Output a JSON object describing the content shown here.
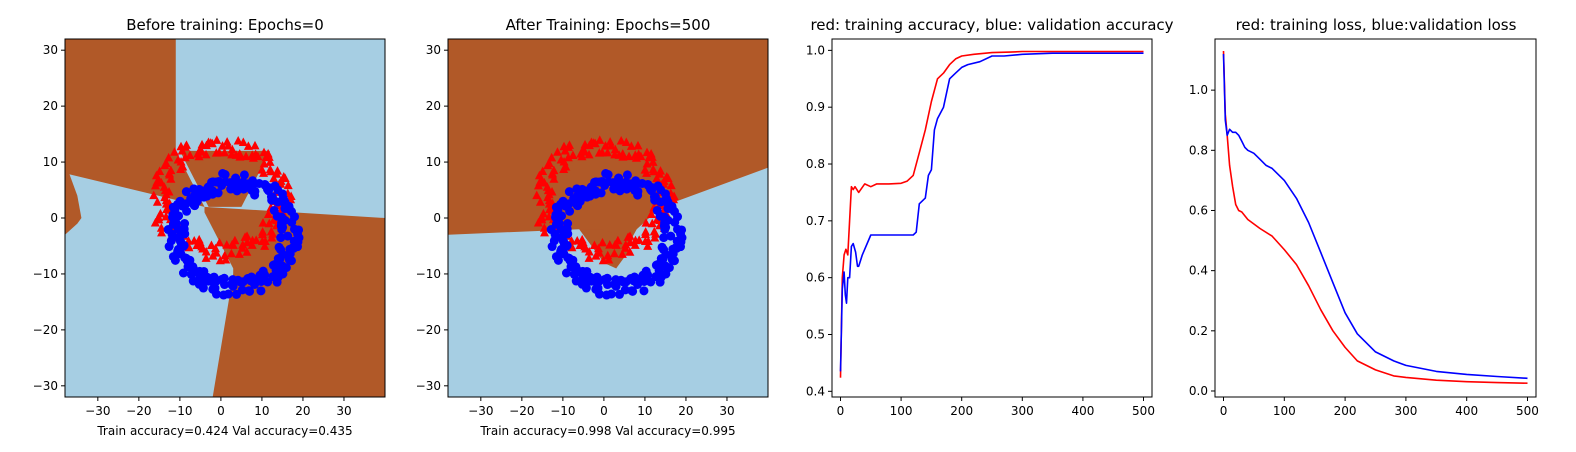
{
  "chart_data": [
    {
      "type": "scatter",
      "title": "Before training: Epochs=0",
      "xlabel": "Train accuracy=0.424 Val accuracy=0.435",
      "ylabel": "",
      "xlim": [
        -38,
        40
      ],
      "ylim": [
        -32,
        32
      ],
      "xticks": [
        -30,
        -20,
        -10,
        0,
        10,
        20,
        30
      ],
      "yticks": [
        -30,
        -20,
        -10,
        0,
        10,
        20,
        30
      ],
      "background_colors": {
        "region_a": "#a6cee3",
        "region_b": "#b15928"
      },
      "decision_regions_b": [
        [
          [
            -38,
            32
          ],
          [
            -11,
            32
          ],
          [
            -11,
            12
          ],
          [
            -4,
            2
          ],
          [
            -38,
            8
          ]
        ],
        [
          [
            -10,
            12
          ],
          [
            -3,
            2
          ],
          [
            5,
            2
          ],
          [
            12,
            12
          ]
        ],
        [
          [
            -38,
            8
          ],
          [
            -37,
            8
          ],
          [
            -35,
            4
          ],
          [
            -34,
            0
          ],
          [
            -35,
            -1
          ],
          [
            -38,
            -3
          ]
        ],
        [
          [
            -4,
            2
          ],
          [
            40,
            0
          ],
          [
            40,
            -32
          ],
          [
            -2,
            -32
          ],
          [
            3,
            -10
          ],
          [
            3,
            -9
          ],
          [
            -4,
            1
          ]
        ]
      ],
      "series": [
        {
          "marker": "triangle",
          "color": "#ff0000",
          "shape": "ring",
          "cx": 0,
          "cy": 3.5,
          "rx": 15,
          "ry": 9.5,
          "count": 170
        },
        {
          "marker": "circle",
          "color": "#0000ff",
          "shape": "ring",
          "cx": 3,
          "cy": -3,
          "rx": 14,
          "ry": 9.5,
          "count": 190
        }
      ]
    },
    {
      "type": "scatter",
      "title": "After Training: Epochs=500",
      "xlabel": "Train accuracy=0.998 Val accuracy=0.995",
      "ylabel": "",
      "xlim": [
        -38,
        40
      ],
      "ylim": [
        -32,
        32
      ],
      "xticks": [
        -30,
        -20,
        -10,
        0,
        10,
        20,
        30
      ],
      "yticks": [
        -30,
        -20,
        -10,
        0,
        10,
        20,
        30
      ],
      "background_colors": {
        "region_a": "#a6cee3",
        "region_b": "#b15928"
      },
      "decision_regions_b": [
        [
          [
            -38,
            32
          ],
          [
            40,
            32
          ],
          [
            40,
            9
          ],
          [
            14,
            2
          ],
          [
            8,
            -2
          ],
          [
            5,
            -6
          ],
          [
            3,
            -9
          ],
          [
            0,
            -8
          ],
          [
            -4,
            -4
          ],
          [
            -6,
            -2
          ],
          [
            -38,
            -3
          ]
        ],
        [
          [
            -6,
            -2
          ],
          [
            -1,
            -2
          ],
          [
            4,
            -3
          ],
          [
            6,
            -6
          ],
          [
            3,
            -9
          ],
          [
            0,
            -8
          ],
          [
            -4,
            -4
          ]
        ]
      ],
      "series": [
        {
          "marker": "triangle",
          "color": "#ff0000",
          "shape": "ring",
          "cx": 0,
          "cy": 3.5,
          "rx": 15,
          "ry": 9.5,
          "count": 170
        },
        {
          "marker": "circle",
          "color": "#0000ff",
          "shape": "ring",
          "cx": 3,
          "cy": -3,
          "rx": 14,
          "ry": 9.5,
          "count": 190
        }
      ]
    },
    {
      "type": "line",
      "title": "red: training accuracy, blue: validation accuracy",
      "xlabel": "",
      "ylabel": "",
      "xlim": [
        -14,
        514
      ],
      "ylim": [
        0.39,
        1.02
      ],
      "xticks": [
        0,
        100,
        200,
        300,
        400,
        500
      ],
      "yticks": [
        0.4,
        0.5,
        0.6,
        0.7,
        0.8,
        0.9,
        1.0
      ],
      "series": [
        {
          "name": "training accuracy",
          "color": "#ff0000",
          "x": [
            0,
            3,
            6,
            9,
            12,
            15,
            18,
            21,
            24,
            30,
            40,
            50,
            60,
            80,
            100,
            110,
            120,
            130,
            140,
            150,
            160,
            170,
            180,
            190,
            200,
            220,
            250,
            280,
            300,
            350,
            400,
            450,
            500
          ],
          "y": [
            0.424,
            0.6,
            0.64,
            0.65,
            0.64,
            0.7,
            0.76,
            0.755,
            0.76,
            0.75,
            0.765,
            0.76,
            0.765,
            0.765,
            0.766,
            0.77,
            0.78,
            0.82,
            0.86,
            0.91,
            0.95,
            0.96,
            0.975,
            0.985,
            0.99,
            0.993,
            0.996,
            0.997,
            0.998,
            0.998,
            0.998,
            0.998,
            0.998
          ]
        },
        {
          "name": "validation accuracy",
          "color": "#0000ff",
          "x": [
            0,
            3,
            6,
            8,
            10,
            12,
            15,
            18,
            21,
            25,
            28,
            30,
            33,
            36,
            40,
            50,
            60,
            70,
            80,
            90,
            100,
            110,
            120,
            125,
            130,
            140,
            145,
            150,
            155,
            160,
            170,
            180,
            190,
            200,
            210,
            230,
            250,
            270,
            300,
            350,
            400,
            450,
            500
          ],
          "y": [
            0.435,
            0.58,
            0.61,
            0.57,
            0.555,
            0.6,
            0.6,
            0.655,
            0.66,
            0.645,
            0.62,
            0.62,
            0.63,
            0.64,
            0.65,
            0.675,
            0.675,
            0.675,
            0.675,
            0.675,
            0.675,
            0.675,
            0.675,
            0.68,
            0.73,
            0.74,
            0.78,
            0.79,
            0.86,
            0.88,
            0.9,
            0.95,
            0.96,
            0.97,
            0.975,
            0.98,
            0.99,
            0.99,
            0.993,
            0.995,
            0.995,
            0.995,
            0.995
          ]
        }
      ]
    },
    {
      "type": "line",
      "title": "red: training loss, blue:validation loss",
      "xlabel": "",
      "ylabel": "",
      "xlim": [
        -14,
        514
      ],
      "ylim": [
        -0.02,
        1.17
      ],
      "xticks": [
        0,
        100,
        200,
        300,
        400,
        500
      ],
      "yticks": [
        0.0,
        0.2,
        0.4,
        0.6,
        0.8,
        1.0
      ],
      "series": [
        {
          "name": "training loss",
          "color": "#ff0000",
          "x": [
            0,
            3,
            6,
            10,
            15,
            20,
            25,
            30,
            40,
            50,
            60,
            80,
            100,
            120,
            140,
            160,
            180,
            200,
            220,
            250,
            280,
            300,
            350,
            400,
            450,
            500
          ],
          "y": [
            1.13,
            0.92,
            0.85,
            0.75,
            0.68,
            0.62,
            0.6,
            0.595,
            0.57,
            0.555,
            0.54,
            0.515,
            0.47,
            0.42,
            0.35,
            0.27,
            0.2,
            0.145,
            0.1,
            0.07,
            0.05,
            0.045,
            0.036,
            0.031,
            0.028,
            0.026
          ]
        },
        {
          "name": "validation loss",
          "color": "#0000ff",
          "x": [
            0,
            3,
            6,
            10,
            15,
            20,
            25,
            30,
            35,
            40,
            45,
            50,
            60,
            70,
            80,
            90,
            100,
            120,
            140,
            160,
            180,
            200,
            220,
            250,
            280,
            300,
            350,
            400,
            450,
            500
          ],
          "y": [
            1.12,
            0.9,
            0.85,
            0.87,
            0.86,
            0.86,
            0.85,
            0.83,
            0.81,
            0.8,
            0.795,
            0.79,
            0.77,
            0.75,
            0.74,
            0.72,
            0.7,
            0.64,
            0.56,
            0.46,
            0.36,
            0.26,
            0.19,
            0.13,
            0.1,
            0.085,
            0.065,
            0.055,
            0.048,
            0.042
          ]
        }
      ]
    }
  ]
}
